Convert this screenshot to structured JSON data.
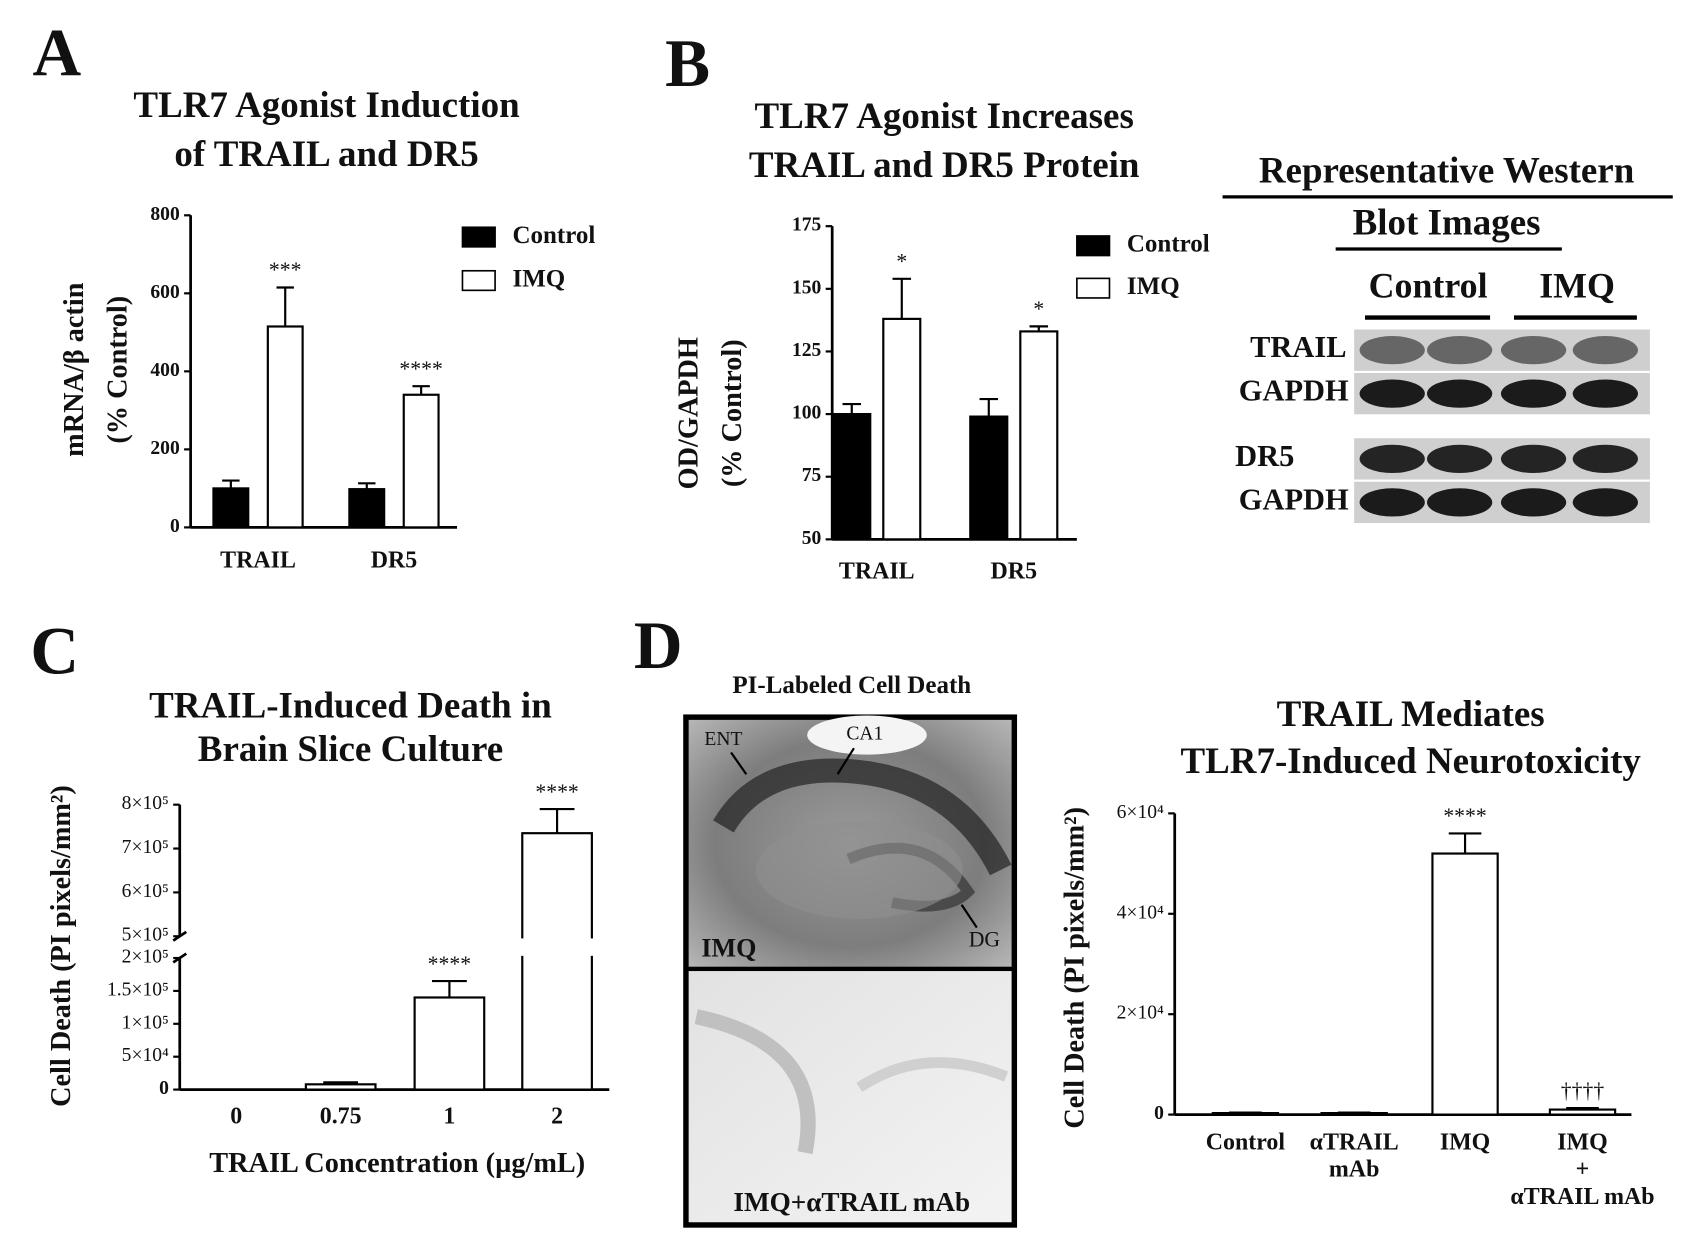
{
  "chart_data": [
    {
      "type": "bar",
      "title": [
        "TLR7 Agonist Induction",
        "of TRAIL and DR5"
      ],
      "ylabel": [
        "mRNA/β actin",
        "(% Control)"
      ],
      "categories": [
        "TRAIL",
        "DR5"
      ],
      "series": [
        {
          "name": "Control",
          "color": "#000000",
          "values": [
            100,
            98
          ],
          "errors": [
            20,
            15
          ]
        },
        {
          "name": "IMQ",
          "color": "#ffffff",
          "values": [
            515,
            340
          ],
          "errors": [
            100,
            22
          ],
          "significance": [
            "***",
            "****"
          ]
        }
      ],
      "ylim": [
        0,
        800
      ],
      "yticks": [
        0,
        200,
        400,
        600,
        800
      ],
      "legend": "upper right"
    },
    {
      "type": "bar",
      "title": [
        "TLR7 Agonist Increases",
        "TRAIL and DR5 Protein"
      ],
      "ylabel": [
        "OD/GAPDH",
        "(% Control)"
      ],
      "categories": [
        "TRAIL",
        "DR5"
      ],
      "series": [
        {
          "name": "Control",
          "color": "#000000",
          "values": [
            100,
            99
          ],
          "errors": [
            4,
            7
          ]
        },
        {
          "name": "IMQ",
          "color": "#ffffff",
          "values": [
            138,
            133
          ],
          "errors": [
            16,
            2
          ],
          "significance": [
            "*",
            "*"
          ]
        }
      ],
      "ylim": [
        50,
        175
      ],
      "yticks": [
        50,
        75,
        100,
        125,
        150,
        175
      ],
      "legend": "upper right"
    },
    {
      "type": "bar",
      "title": [
        "TRAIL-Induced Death in",
        "Brain  Slice Culture"
      ],
      "ylabel": [
        "Cell Death (PI pixels/mm²)"
      ],
      "xlabel": "TRAIL Concentration (µg/mL)",
      "categories": [
        "0",
        "0.75",
        "1",
        "2"
      ],
      "color": "#ffffff",
      "values": [
        0,
        8000,
        140000,
        735000
      ],
      "errors": [
        0,
        3000,
        25000,
        55000
      ],
      "significance": [
        null,
        null,
        "****",
        "****"
      ],
      "ylim": [
        0,
        800000
      ],
      "ybreak": [
        200000,
        500000
      ],
      "yticks": [
        0,
        {
          "value": 50000,
          "label": "5×10⁴"
        },
        {
          "value": 100000,
          "label": "1×10⁵"
        },
        {
          "value": 150000,
          "label": "1.5×10⁵"
        },
        {
          "value": 200000,
          "label": "2×10⁵"
        },
        {
          "value": 500000,
          "label": "5×10⁵"
        },
        {
          "value": 600000,
          "label": "6×10⁵"
        },
        {
          "value": 700000,
          "label": "7×10⁵"
        },
        {
          "value": 800000,
          "label": "8×10⁵"
        }
      ]
    },
    {
      "type": "bar",
      "title": [
        "TRAIL Mediates",
        "TLR7-Induced Neurotoxicity"
      ],
      "ylabel": [
        "Cell Death (PI pixels/mm²)"
      ],
      "categories": [
        [
          "Control"
        ],
        [
          "αTRAIL",
          "mAb"
        ],
        [
          "IMQ"
        ],
        [
          "IMQ",
          "+",
          "αTRAIL mAb"
        ]
      ],
      "color": "#ffffff",
      "values": [
        300,
        300,
        52000,
        1000
      ],
      "errors": [
        100,
        100,
        4000,
        300
      ],
      "significance": [
        null,
        null,
        "****",
        "††††"
      ],
      "ylim": [
        0,
        60000
      ],
      "yticks": [
        0,
        {
          "value": 20000,
          "label": "2×10⁴"
        },
        {
          "value": 40000,
          "label": "4×10⁴"
        },
        {
          "value": 60000,
          "label": "6×10⁴"
        }
      ]
    }
  ],
  "panel_labels": [
    "A",
    "B",
    "C",
    "D"
  ],
  "blot": {
    "title": [
      "Representative Western",
      "Blot Images"
    ],
    "groups": [
      "Control",
      "IMQ"
    ],
    "rows": [
      "TRAIL",
      "GAPDH",
      "DR5",
      "GAPDH"
    ]
  },
  "images": {
    "title": "PI-Labeled Cell Death",
    "labels": [
      "ENT",
      "CA1",
      "DG",
      "IMQ"
    ],
    "bottom_label": "IMQ+αTRAIL mAb"
  }
}
